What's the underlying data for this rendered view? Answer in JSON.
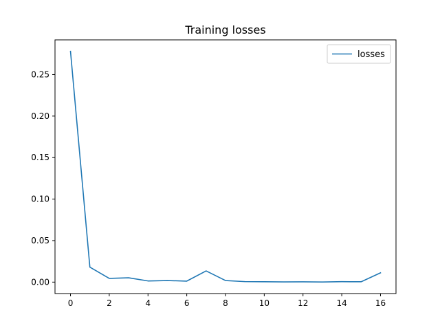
{
  "chart_data": {
    "type": "line",
    "title": "Training losses",
    "xlabel": "",
    "ylabel": "",
    "x": [
      0,
      1,
      2,
      3,
      4,
      5,
      6,
      7,
      8,
      9,
      10,
      11,
      12,
      13,
      14,
      15,
      16
    ],
    "series": [
      {
        "name": "losses",
        "color": "#1f77b4",
        "values": [
          0.278,
          0.018,
          0.0045,
          0.0052,
          0.0014,
          0.0019,
          0.0012,
          0.0135,
          0.0019,
          0.0006,
          0.0004,
          0.0002,
          0.0003,
          0.0001,
          0.0005,
          0.0004,
          0.0112
        ]
      }
    ],
    "xlim": [
      -0.8,
      16.8
    ],
    "ylim": [
      -0.0138,
      0.2918
    ],
    "x_ticks": [
      0,
      2,
      4,
      6,
      8,
      10,
      12,
      14,
      16
    ],
    "x_tick_labels": [
      "0",
      "2",
      "4",
      "6",
      "8",
      "10",
      "12",
      "14",
      "16"
    ],
    "y_ticks": [
      0,
      0.05,
      0.1,
      0.15,
      0.2,
      0.25
    ],
    "y_tick_labels": [
      "0.00",
      "0.05",
      "0.10",
      "0.15",
      "0.20",
      "0.25"
    ],
    "legend": {
      "position": "top-right",
      "entries": [
        "losses"
      ]
    },
    "grid": false
  }
}
